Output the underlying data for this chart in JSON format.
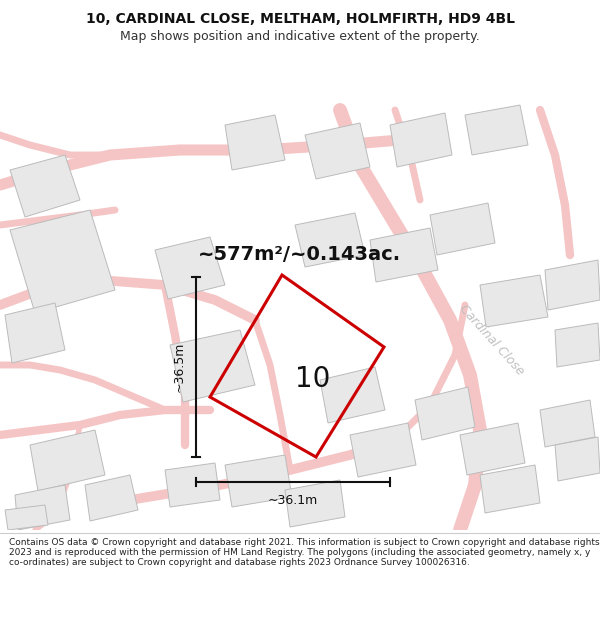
{
  "title_line1": "10, CARDINAL CLOSE, MELTHAM, HOLMFIRTH, HD9 4BL",
  "title_line2": "Map shows position and indicative extent of the property.",
  "area_text": "~577m²/~0.143ac.",
  "label_number": "10",
  "dim_width": "~36.1m",
  "dim_height": "~36.5m",
  "cardinal_close_label": "Cardinal Close",
  "footer_text": "Contains OS data © Crown copyright and database right 2021. This information is subject to Crown copyright and database rights 2023 and is reproduced with the permission of HM Land Registry. The polygons (including the associated geometry, namely x, y co-ordinates) are subject to Crown copyright and database rights 2023 Ordnance Survey 100026316.",
  "map_bg": "#ffffff",
  "plot_outline_color": "#cc0000",
  "building_fill": "#e8e8e8",
  "building_stroke": "#bbbbbb",
  "road_color": "#f5c5c5",
  "dim_color": "#111111",
  "footer_bg": "#ffffff",
  "title_bg": "#ffffff",
  "cardinal_close_color": "#c0c0c0",
  "title_fontsize": 10,
  "subtitle_fontsize": 9,
  "area_fontsize": 14,
  "number_fontsize": 20,
  "dim_fontsize": 9,
  "cardinal_fontsize": 9,
  "footer_fontsize": 6.5
}
